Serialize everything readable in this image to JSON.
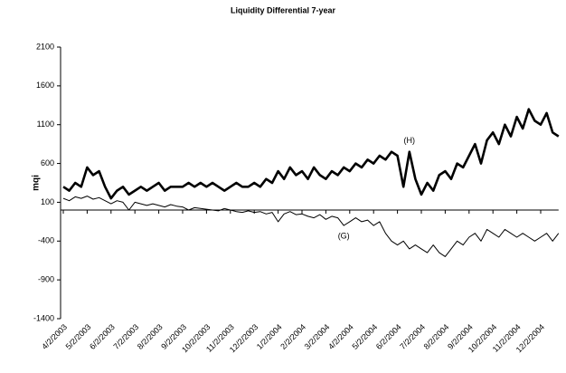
{
  "chart_data": {
    "type": "line",
    "title": "Liquidity Differential 7-year",
    "ylabel": "mqi",
    "categories": [
      "4/2/2003",
      null,
      null,
      null,
      "5/2/2003",
      null,
      null,
      null,
      "6/2/2003",
      null,
      null,
      null,
      "7/2/2003",
      null,
      null,
      null,
      "8/2/2003",
      null,
      null,
      null,
      "9/2/2003",
      null,
      null,
      null,
      "10/2/2003",
      null,
      null,
      null,
      "11/2/2003",
      null,
      null,
      null,
      "12/2/2003",
      null,
      null,
      null,
      "1/2/2004",
      null,
      null,
      null,
      "2/2/2004",
      null,
      null,
      null,
      "3/2/2004",
      null,
      null,
      null,
      "4/2/2004",
      null,
      null,
      null,
      "5/2/2004",
      null,
      null,
      null,
      "6/2/2004",
      null,
      null,
      null,
      "7/2/2004",
      null,
      null,
      null,
      "8/2/2004",
      null,
      null,
      null,
      "9/2/2004",
      null,
      null,
      null,
      "10/2/2004",
      null,
      null,
      null,
      "11/2/2004",
      null,
      null,
      null,
      "12/2/2004",
      null,
      null,
      null
    ],
    "series": [
      {
        "name": "(H)",
        "color": "#000000",
        "values": [
          300,
          250,
          350,
          300,
          550,
          450,
          500,
          300,
          150,
          250,
          300,
          200,
          250,
          300,
          250,
          300,
          350,
          250,
          300,
          300,
          300,
          350,
          300,
          350,
          300,
          350,
          300,
          250,
          300,
          350,
          300,
          300,
          350,
          300,
          400,
          350,
          500,
          400,
          550,
          450,
          500,
          400,
          550,
          450,
          400,
          500,
          450,
          550,
          500,
          600,
          550,
          650,
          600,
          700,
          650,
          750,
          700,
          300,
          750,
          400,
          200,
          350,
          250,
          450,
          500,
          400,
          600,
          550,
          700,
          850,
          600,
          900,
          1000,
          850,
          1100,
          950,
          1200,
          1050,
          1300,
          1150,
          1100,
          1250,
          1000,
          950
        ]
      },
      {
        "name": "(G)",
        "color": "#000000",
        "values": [
          150,
          120,
          170,
          150,
          180,
          140,
          160,
          120,
          80,
          120,
          100,
          0,
          100,
          80,
          60,
          80,
          60,
          40,
          70,
          50,
          40,
          0,
          30,
          20,
          10,
          0,
          -10,
          20,
          0,
          -20,
          -30,
          -10,
          -30,
          -20,
          -50,
          -30,
          -150,
          -50,
          -20,
          -60,
          -50,
          -80,
          -100,
          -60,
          -120,
          -80,
          -100,
          -200,
          -150,
          -100,
          -150,
          -130,
          -200,
          -150,
          -300,
          -400,
          -450,
          -400,
          -500,
          -450,
          -500,
          -550,
          -450,
          -550,
          -600,
          -500,
          -400,
          -450,
          -350,
          -300,
          -400,
          -250,
          -300,
          -350,
          -250,
          -300,
          -350,
          -300,
          -350,
          -400,
          -350,
          -300,
          -400,
          -300
        ]
      }
    ],
    "ylim": [
      -1400,
      2100
    ],
    "yticks": [
      -1400,
      -900,
      -400,
      100,
      600,
      1100,
      1600,
      2100
    ],
    "grid": false
  }
}
